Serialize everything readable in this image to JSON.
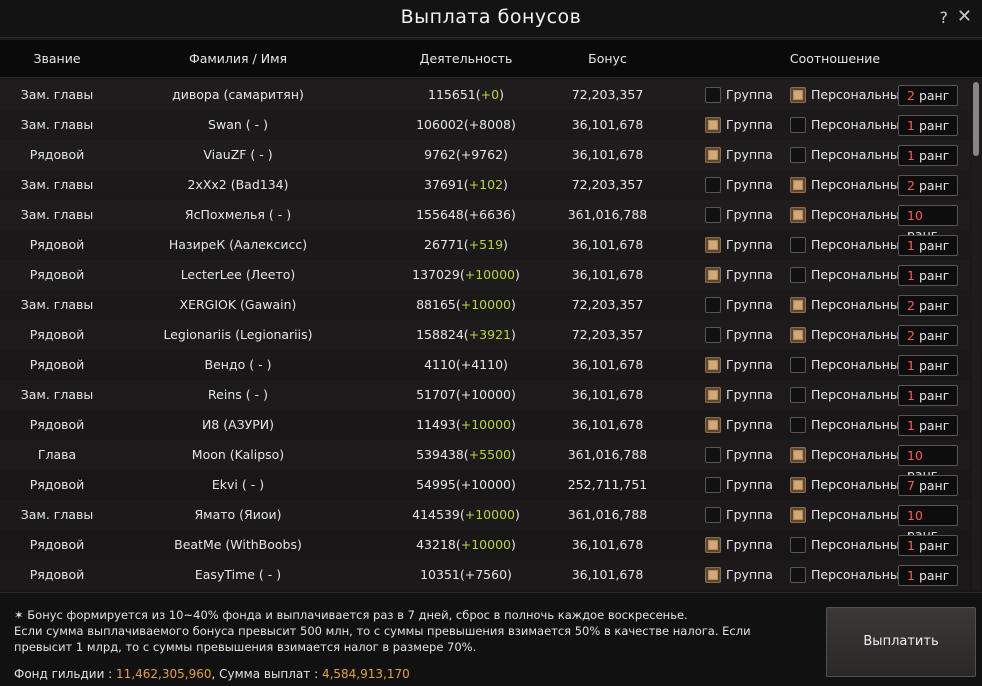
{
  "window": {
    "title": "Выплата бонусов",
    "help_icon": "?",
    "close_icon": "✕"
  },
  "columns": {
    "rank": "Звание",
    "name": "Фамилия / Имя",
    "activity": "Деятельность",
    "bonus": "Бонус",
    "ratio": "Соотношение"
  },
  "labels": {
    "group": "Группа",
    "personal": "Персональный",
    "rank_word": "ранг"
  },
  "rows": [
    {
      "rank": "Зам. главы",
      "name": "дивора (самаритян)",
      "act_base": "115651(",
      "act_gain": "+0",
      "act_end": ")",
      "gain_green": true,
      "bonus": "72,203,357",
      "group": false,
      "personal": true,
      "tier": "2"
    },
    {
      "rank": "Зам. главы",
      "name": "Swan ( - )",
      "act_base": "106002(+8008)",
      "act_gain": "",
      "act_end": "",
      "gain_green": false,
      "bonus": "36,101,678",
      "group": true,
      "personal": false,
      "tier": "1"
    },
    {
      "rank": "Рядовой",
      "name": "ViauZF ( - )",
      "act_base": "9762(+9762)",
      "act_gain": "",
      "act_end": "",
      "gain_green": false,
      "bonus": "36,101,678",
      "group": true,
      "personal": false,
      "tier": "1"
    },
    {
      "rank": "Зам. главы",
      "name": "2xXx2 (Bad134)",
      "act_base": "37691(",
      "act_gain": "+102",
      "act_end": ")",
      "gain_green": true,
      "bonus": "72,203,357",
      "group": false,
      "personal": true,
      "tier": "2"
    },
    {
      "rank": "Зам. главы",
      "name": "ЯсПохмелья ( - )",
      "act_base": "155648(+6636)",
      "act_gain": "",
      "act_end": "",
      "gain_green": false,
      "bonus": "361,016,788",
      "group": false,
      "personal": true,
      "tier": "10"
    },
    {
      "rank": "Рядовой",
      "name": "НазиреК (Аалексисс)",
      "act_base": "26771(",
      "act_gain": "+519",
      "act_end": ")",
      "gain_green": true,
      "bonus": "36,101,678",
      "group": true,
      "personal": false,
      "tier": "1"
    },
    {
      "rank": "Рядовой",
      "name": "LecterLee (Леето)",
      "act_base": "137029(",
      "act_gain": "+10000",
      "act_end": ")",
      "gain_green": true,
      "bonus": "36,101,678",
      "group": true,
      "personal": false,
      "tier": "1"
    },
    {
      "rank": "Зам. главы",
      "name": "XERGIOK (Gawain)",
      "act_base": "88165(",
      "act_gain": "+10000",
      "act_end": ")",
      "gain_green": true,
      "bonus": "72,203,357",
      "group": false,
      "personal": true,
      "tier": "2"
    },
    {
      "rank": "Рядовой",
      "name": "Legionariis (Legionariis)",
      "act_base": "158824(",
      "act_gain": "+3921",
      "act_end": ")",
      "gain_green": true,
      "bonus": "72,203,357",
      "group": false,
      "personal": true,
      "tier": "2"
    },
    {
      "rank": "Рядовой",
      "name": "Вендо ( - )",
      "act_base": "4110(+4110)",
      "act_gain": "",
      "act_end": "",
      "gain_green": false,
      "bonus": "36,101,678",
      "group": true,
      "personal": false,
      "tier": "1"
    },
    {
      "rank": "Зам. главы",
      "name": "Reins ( - )",
      "act_base": "51707(+10000)",
      "act_gain": "",
      "act_end": "",
      "gain_green": false,
      "bonus": "36,101,678",
      "group": true,
      "personal": false,
      "tier": "1"
    },
    {
      "rank": "Рядовой",
      "name": "И8 (АЗУРИ)",
      "act_base": "11493(",
      "act_gain": "+10000",
      "act_end": ")",
      "gain_green": true,
      "bonus": "36,101,678",
      "group": true,
      "personal": false,
      "tier": "1"
    },
    {
      "rank": "Глава",
      "name": "Moon (Kalipso)",
      "act_base": "539438(",
      "act_gain": "+5500",
      "act_end": ")",
      "gain_green": true,
      "bonus": "361,016,788",
      "group": false,
      "personal": true,
      "tier": "10"
    },
    {
      "rank": "Рядовой",
      "name": "Ekvi ( - )",
      "act_base": "54995(+10000)",
      "act_gain": "",
      "act_end": "",
      "gain_green": false,
      "bonus": "252,711,751",
      "group": false,
      "personal": true,
      "tier": "7"
    },
    {
      "rank": "Зам. главы",
      "name": "Ямато (Яиои)",
      "act_base": "414539(",
      "act_gain": "+10000",
      "act_end": ")",
      "gain_green": true,
      "bonus": "361,016,788",
      "group": false,
      "personal": true,
      "tier": "10"
    },
    {
      "rank": "Рядовой",
      "name": "BeatMe (WithBoobs)",
      "act_base": "43218(",
      "act_gain": "+10000",
      "act_end": ")",
      "gain_green": true,
      "bonus": "36,101,678",
      "group": true,
      "personal": false,
      "tier": "1"
    },
    {
      "rank": "Рядовой",
      "name": "EasyTime ( - )",
      "act_base": "10351(+7560)",
      "act_gain": "",
      "act_end": "",
      "gain_green": false,
      "bonus": "36,101,678",
      "group": true,
      "personal": false,
      "tier": "1"
    }
  ],
  "footer": {
    "note_line1": "✶ Бонус формируется из 10~40% фонда и выплачивается раз в 7 дней, сброс в полночь каждое воскресенье.",
    "note_line2": "Если сумма выплачиваемого бонуса превысит 500 млн, то с суммы превышения взимается 50% в качестве налога. Если превысит 1 млрд, то с суммы превышения взимается налог в размере 70%.",
    "fund_label": "Фонд гильдии : ",
    "fund_value": "11,462,305,960",
    "sum_label": ", Сумма выплат : ",
    "sum_value": "4,584,913,170",
    "pay_button": "Выплатить"
  },
  "colors": {
    "accent_gold": "#e2a23b",
    "gain_green": "#b8d639",
    "tier_red": "#ff5c4d",
    "checkbox_on": "#b58a5a"
  }
}
